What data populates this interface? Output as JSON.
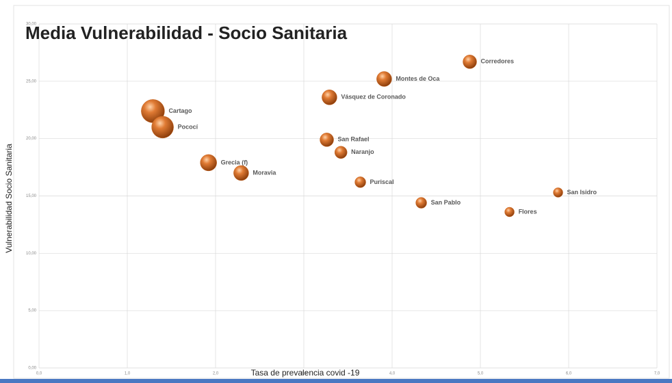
{
  "chart_data": {
    "type": "bubble",
    "title": "Media Vulnerabilidad - Socio Sanitaria",
    "x_label": "Tasa de prevalencia covid -19",
    "y_label": "Vulnerabilidad Socio Sanitaria",
    "color": "#c8641e",
    "labels": [
      "Cartago",
      "Pococí",
      "Grecia (f)",
      "Moravia",
      "San Rafael",
      "Naranjo",
      "Vásquez de Coronado",
      "Montes de Oca",
      "Corredores",
      "Puriscal",
      "San Pablo",
      "Flores",
      "San Isidro"
    ],
    "x": [
      1.29,
      1.4,
      1.92,
      2.29,
      3.26,
      3.42,
      3.29,
      3.91,
      4.88,
      3.64,
      4.33,
      5.33,
      5.88
    ],
    "values": [
      22.4,
      21.0,
      17.9,
      17.0,
      19.9,
      18.8,
      23.6,
      25.2,
      26.7,
      16.2,
      14.4,
      13.6,
      15.3
    ],
    "sizes": [
      290,
      256,
      144,
      121,
      100,
      81,
      121,
      121,
      100,
      64,
      64,
      49,
      49
    ],
    "xlim": [
      0,
      7
    ],
    "xticks": [
      {
        "value": 0,
        "label": "0,0"
      },
      {
        "value": 1,
        "label": "1,0"
      },
      {
        "value": 2,
        "label": "2,0"
      },
      {
        "value": 3,
        "label": "3,0"
      },
      {
        "value": 4,
        "label": "4,0"
      },
      {
        "value": 5,
        "label": "5,0"
      },
      {
        "value": 6,
        "label": "6,0"
      },
      {
        "value": 7,
        "label": "7,0"
      }
    ],
    "ylim": [
      0,
      30
    ],
    "yticks": [
      {
        "value": 0,
        "label": "0,00"
      },
      {
        "value": 5,
        "label": "5,00"
      },
      {
        "value": 10,
        "label": "10,00"
      },
      {
        "value": 15,
        "label": "15,00"
      },
      {
        "value": 20,
        "label": "20,00"
      },
      {
        "value": 25,
        "label": "25,00"
      },
      {
        "value": 30,
        "label": "30,00"
      }
    ],
    "grid": true
  }
}
